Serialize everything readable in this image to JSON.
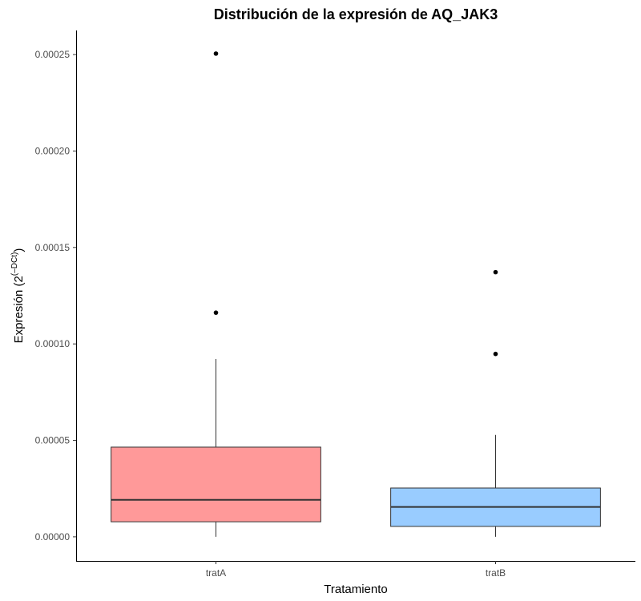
{
  "chart_data": {
    "type": "box",
    "title": "Distribución de la expresión de AQ_JAK3",
    "xlabel": "Tratamiento",
    "ylabel": {
      "prefix": "Expresión (2",
      "superscript": "(–DCt)",
      "suffix": ")"
    },
    "ylim": [
      -1.25e-05,
      0.0002625
    ],
    "yticks": [
      0.0,
      5e-05,
      0.0001,
      0.00015,
      0.0002,
      0.00025
    ],
    "ytick_labels": [
      "0.00000",
      "0.00005",
      "0.00010",
      "0.00015",
      "0.00020",
      "0.00025"
    ],
    "grid": false,
    "categories": [
      "tratA",
      "tratB"
    ],
    "boxes": [
      {
        "category": "tratA",
        "color": "#ff9999",
        "whisker_low": 0.0,
        "q1": 7.8e-06,
        "median": 1.92e-05,
        "q3": 4.65e-05,
        "whisker_high": 9.22e-05,
        "outliers": [
          0.0001162,
          0.0002505
        ]
      },
      {
        "category": "tratB",
        "color": "#99ccff",
        "whisker_low": 0.0,
        "q1": 5.4e-06,
        "median": 1.55e-05,
        "q3": 2.53e-05,
        "whisker_high": 5.28e-05,
        "outliers": [
          9.48e-05,
          0.0001372
        ]
      }
    ]
  }
}
